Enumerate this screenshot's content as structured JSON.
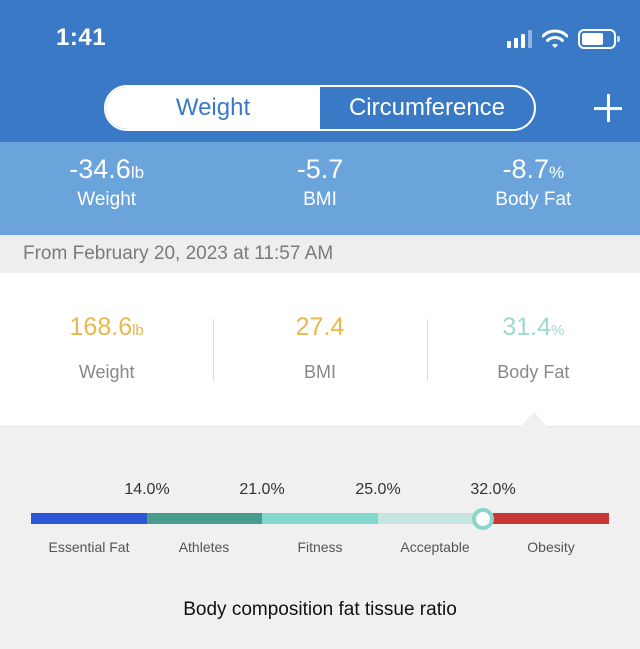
{
  "status_bar": {
    "time": "1:41",
    "icons": [
      "signal-icon",
      "wifi-icon",
      "battery-icon"
    ]
  },
  "segmented": {
    "tabs": [
      {
        "label": "Weight",
        "active": true
      },
      {
        "label": "Circumference",
        "active": false
      }
    ]
  },
  "header": {
    "add_icon": "plus-icon"
  },
  "summary": {
    "weight": {
      "value": "-34.6",
      "unit": "lb",
      "label": "Weight"
    },
    "bmi": {
      "value": "-5.7",
      "unit": "",
      "label": "BMI"
    },
    "body_fat": {
      "value": "-8.7",
      "unit": "%",
      "label": "Body Fat"
    }
  },
  "date_text": "From February 20, 2023 at 11:57 AM",
  "stats": {
    "weight": {
      "value": "168.6",
      "unit": "lb",
      "label": "Weight"
    },
    "bmi": {
      "value": "27.4",
      "unit": "",
      "label": "BMI"
    },
    "body_fat": {
      "value": "31.4",
      "unit": "%",
      "label": "Body Fat"
    }
  },
  "scale": {
    "thresholds": [
      "14.0%",
      "21.0%",
      "25.0%",
      "32.0%"
    ],
    "categories": [
      "Essential Fat",
      "Athletes",
      "Fitness",
      "Acceptable",
      "Obesity"
    ],
    "segment_colors": [
      "#2d57d6",
      "#4a9d8e",
      "#82d8cc",
      "#c5e5e1",
      "#c93636"
    ],
    "current_value": 31.4,
    "caption": "Body composition fat tissue ratio"
  },
  "colors": {
    "header_blue": "#3a79c6",
    "summary_blue": "#6aa4da",
    "weight_yellow": "#e6b94a",
    "fat_teal": "#9ed8ce"
  }
}
